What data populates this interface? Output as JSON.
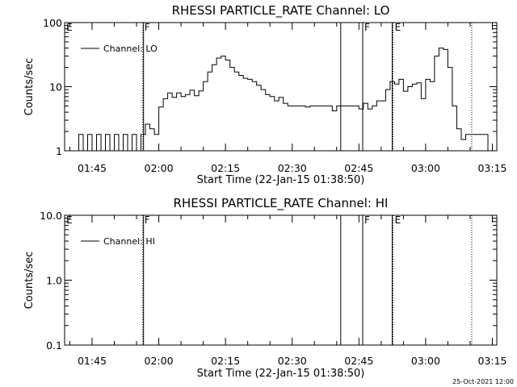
{
  "footer_timestamp": "25-Oct-2021 12:00",
  "chart_data": [
    {
      "type": "line",
      "title": "RHESSI PARTICLE_RATE Channel: LO",
      "xlabel": "Start Time (22-Jan-15 01:38:50)",
      "ylabel": "Counts/sec",
      "yscale": "log",
      "ylim": [
        1,
        100
      ],
      "y_ticks": [
        "1",
        "10",
        "100"
      ],
      "xlim_minutes": [
        98.83,
        196
      ],
      "x_ticks": [
        "01:45",
        "02:00",
        "02:15",
        "02:30",
        "02:45",
        "03:00",
        "03:15"
      ],
      "legend": "Channel: LO",
      "legend_position": "top-left",
      "flags": [
        "E",
        "F",
        "F",
        "E"
      ],
      "series": [
        {
          "name": "Channel: LO",
          "x": [
            "01:41",
            "01:42",
            "01:43",
            "01:44",
            "01:45",
            "01:46",
            "01:47",
            "01:48",
            "01:49",
            "01:50",
            "01:51",
            "01:52",
            "01:53",
            "01:54",
            "01:55",
            "01:56",
            "01:57",
            "01:58",
            "01:59",
            "02:00",
            "02:01",
            "02:02",
            "02:03",
            "02:04",
            "02:05",
            "02:06",
            "02:07",
            "02:08",
            "02:09",
            "02:10",
            "02:11",
            "02:12",
            "02:13",
            "02:14",
            "02:15",
            "02:16",
            "02:17",
            "02:18",
            "02:19",
            "02:20",
            "02:21",
            "02:22",
            "02:23",
            "02:24",
            "02:25",
            "02:26",
            "02:27",
            "02:28",
            "02:29",
            "02:30",
            "02:31",
            "02:32",
            "02:33",
            "02:34",
            "02:35",
            "02:36",
            "02:37",
            "02:38",
            "02:39",
            "02:40",
            "02:41",
            "02:42",
            "02:43",
            "02:44",
            "02:45",
            "02:46",
            "02:47",
            "02:48",
            "02:49",
            "02:50",
            "02:51",
            "02:52",
            "02:53",
            "02:54",
            "02:55",
            "02:56",
            "02:57",
            "02:58",
            "02:59",
            "03:00",
            "03:01",
            "03:02",
            "03:03",
            "03:04",
            "03:05",
            "03:06",
            "03:07",
            "03:08",
            "03:09",
            "03:10",
            "03:11",
            "03:12",
            "03:13",
            "03:14"
          ],
          "y": [
            1.0,
            1.8,
            1.0,
            1.8,
            1.0,
            1.8,
            1.0,
            1.8,
            1.0,
            1.8,
            1.0,
            1.8,
            1.0,
            1.8,
            1.0,
            1.8,
            2.6,
            2.2,
            1.8,
            4.8,
            6.5,
            8.0,
            6.8,
            8.0,
            7.0,
            7.5,
            8.8,
            7.2,
            8.6,
            12.0,
            17.0,
            22.0,
            28.0,
            30.0,
            26.0,
            20.0,
            17.0,
            15.0,
            13.5,
            13.0,
            12.0,
            10.5,
            9.0,
            7.5,
            7.0,
            6.0,
            6.8,
            5.5,
            5.0,
            5.0,
            5.0,
            5.0,
            4.8,
            5.0,
            5.0,
            5.0,
            5.0,
            5.0,
            4.2,
            5.0,
            5.0,
            5.0,
            5.0,
            5.0,
            4.5,
            5.5,
            4.5,
            5.0,
            6.0,
            6.0,
            9.0,
            12.0,
            11.0,
            13.0,
            8.5,
            10.0,
            11.0,
            11.5,
            6.5,
            13.0,
            12.0,
            30.0,
            40.0,
            38.0,
            20.0,
            5.0,
            2.2,
            1.5,
            1.8,
            1.8,
            1.8,
            1.8,
            1.8,
            1.0
          ]
        }
      ]
    },
    {
      "type": "line",
      "title": "RHESSI PARTICLE_RATE Channel: HI",
      "xlabel": "Start Time (22-Jan-15 01:38:50)",
      "ylabel": "Counts/sec",
      "yscale": "log",
      "ylim": [
        0.1,
        10
      ],
      "y_ticks": [
        "0.1",
        "1.0",
        "10.0"
      ],
      "xlim_minutes": [
        98.83,
        196
      ],
      "x_ticks": [
        "01:45",
        "02:00",
        "02:15",
        "02:30",
        "02:45",
        "03:00",
        "03:15"
      ],
      "legend": "Channel: HI",
      "legend_position": "top-left",
      "flags": [
        "E",
        "F",
        "F",
        "E"
      ],
      "series": [
        {
          "name": "Channel: HI",
          "x": [],
          "y": []
        }
      ]
    }
  ]
}
